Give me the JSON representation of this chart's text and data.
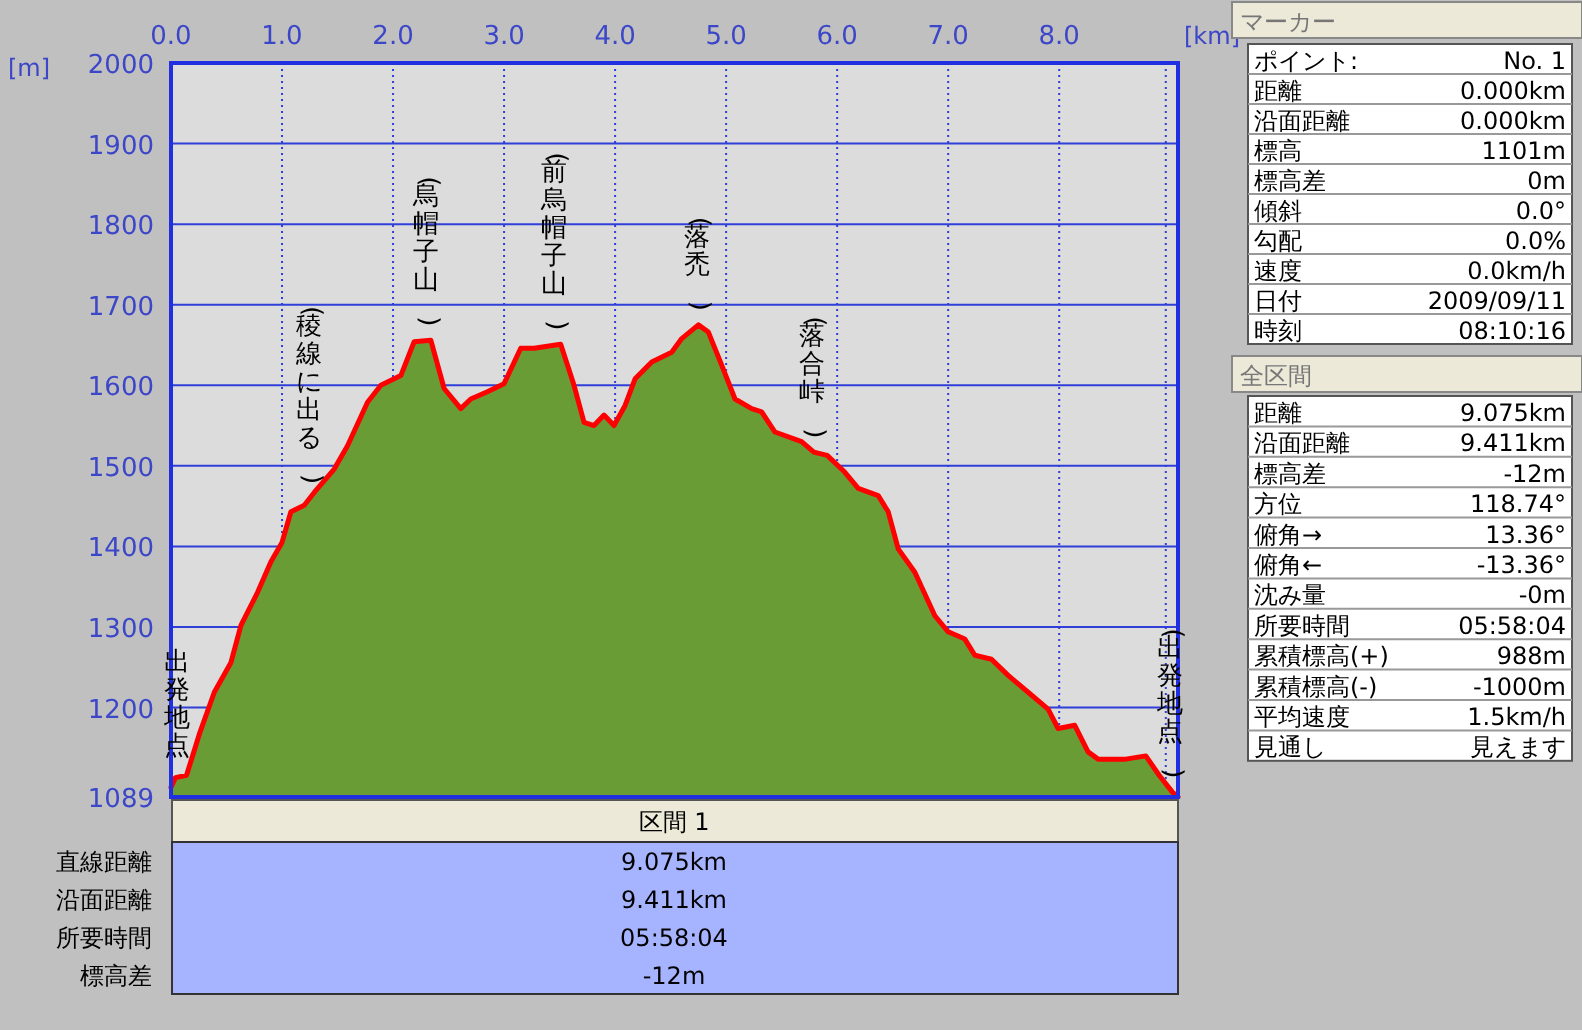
{
  "chart_data": [
    {
      "type": "area",
      "xlabel": "[km]",
      "ylabel": "[m]",
      "x": [
        0,
        0.04,
        0.14,
        0.26,
        0.39,
        0.54,
        0.63,
        0.78,
        0.9,
        1.0,
        1.08,
        1.2,
        1.29,
        1.47,
        1.59,
        1.77,
        1.89,
        2.07,
        2.19,
        2.34,
        2.46,
        2.61,
        2.7,
        2.85,
        3.0,
        3.15,
        3.27,
        3.51,
        3.63,
        3.72,
        3.81,
        3.9,
        3.99,
        4.09,
        4.18,
        4.33,
        4.51,
        4.6,
        4.75,
        4.84,
        4.96,
        5.08,
        5.23,
        5.32,
        5.44,
        5.68,
        5.79,
        5.91,
        6.07,
        6.19,
        6.37,
        6.46,
        6.55,
        6.7,
        6.88,
        7.0,
        7.15,
        7.24,
        7.39,
        7.54,
        7.72,
        7.9,
        7.99,
        8.14,
        8.26,
        8.35,
        8.6,
        8.78,
        8.9,
        9.02,
        9.07
      ],
      "series": [
        {
          "color": "#6a9c36",
          "values": [
            1101,
            1113,
            1116,
            1169,
            1219,
            1256,
            1302,
            1343,
            1381,
            1405,
            1443,
            1451,
            1467,
            1496,
            1525,
            1579,
            1600,
            1612,
            1654,
            1656,
            1596,
            1571,
            1583,
            1592,
            1602,
            1646,
            1646,
            1651,
            1600,
            1554,
            1550,
            1563,
            1550,
            1575,
            1608,
            1629,
            1641,
            1658,
            1675,
            1666,
            1625,
            1583,
            1571,
            1567,
            1542,
            1530,
            1517,
            1513,
            1492,
            1472,
            1463,
            1443,
            1397,
            1368,
            1314,
            1294,
            1285,
            1265,
            1260,
            1240,
            1219,
            1198,
            1174,
            1178,
            1145,
            1136,
            1136,
            1140,
            1116,
            1095,
            1089
          ]
        }
      ],
      "xlim": [
        0,
        9.07
      ],
      "ylim": [
        1089,
        2000
      ],
      "xticks": [
        {
          "value": 0,
          "label": "0.0"
        },
        {
          "value": 1,
          "label": "1.0"
        },
        {
          "value": 2,
          "label": "2.0"
        },
        {
          "value": 3,
          "label": "3.0"
        },
        {
          "value": 4,
          "label": "4.0"
        },
        {
          "value": 5,
          "label": "5.0"
        },
        {
          "value": 6,
          "label": "6.0"
        },
        {
          "value": 7,
          "label": "7.0"
        },
        {
          "value": 8,
          "label": "8.0"
        },
        {
          "value": 8.96,
          "label": null
        }
      ],
      "yticks": [
        1089,
        1200,
        1300,
        1400,
        1500,
        1600,
        1700,
        1800,
        1900,
        2000
      ],
      "grid": true,
      "annotations": [
        {
          "text": "出発地点",
          "x": 0.05,
          "y": 1113
        },
        {
          "text": "(稜線に出る)",
          "x": 1.24,
          "y": 1460
        },
        {
          "text": "(烏帽子山)",
          "x": 2.3,
          "y": 1656
        },
        {
          "text": "(前烏帽子山)",
          "x": 3.45,
          "y": 1651
        },
        {
          "text": "(落禿)",
          "x": 4.74,
          "y": 1675
        },
        {
          "text": "(落合峠)",
          "x": 5.77,
          "y": 1517
        },
        {
          "text": "(出発地点)",
          "x": 9.0,
          "y": 1095
        }
      ]
    },
    {
      "type": "other",
      "title": "マーカー",
      "annotations": [
        "ポイント:",
        "No. 1",
        "距離",
        "0.000km",
        "沿面距離",
        "0.000km",
        "標高",
        "1101m",
        "標高差",
        "0m",
        "傾斜",
        "0.0°",
        "勾配",
        "0.0%",
        "速度",
        "0.0km/h",
        "日付",
        "2009/09/11",
        "時刻",
        "08:10:16"
      ]
    },
    {
      "type": "other",
      "title": "全区間",
      "annotations": [
        "距離",
        "9.075km",
        "沿面距離",
        "9.411km",
        "標高差",
        "-12m",
        "方位",
        "118.74°",
        "俯角→",
        "13.36°",
        "俯角←",
        "-13.36°",
        "沈み量",
        "-0m",
        "所要時間",
        "05:58:04",
        "累積標高(+)",
        "988m",
        "累積標高(-)",
        "-1000m",
        "平均速度",
        "1.5km/h",
        "見通し",
        "見えます"
      ]
    },
    {
      "type": "other",
      "title": "区間 1",
      "annotations": [
        "直線距離",
        "9.075km",
        "沿面距離",
        "9.411km",
        "所要時間",
        "05:58:04",
        "標高差",
        "-12m"
      ]
    }
  ]
}
